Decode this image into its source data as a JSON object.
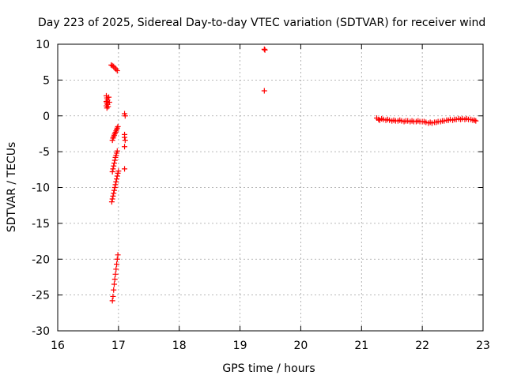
{
  "chart_data": {
    "type": "scatter",
    "title": "Day 223 of 2025, Sidereal Day-to-day VTEC variation (SDTVAR) for receiver wind",
    "xlabel": "GPS time / hours",
    "ylabel": "SDTVAR / TECUs",
    "xlim": [
      16,
      23
    ],
    "ylim": [
      -30,
      10
    ],
    "xticks": [
      16,
      17,
      18,
      19,
      20,
      21,
      22,
      23
    ],
    "yticks": [
      -30,
      -25,
      -20,
      -15,
      -10,
      -5,
      0,
      5,
      10
    ],
    "grid": true,
    "marker": "+",
    "color": "#ff0000",
    "series": [
      {
        "values": [
          {
            "x": 16.8,
            "y": 2.8
          },
          {
            "x": 16.81,
            "y": 2.5
          },
          {
            "x": 16.82,
            "y": 2.2
          },
          {
            "x": 16.8,
            "y": 2.0
          },
          {
            "x": 16.81,
            "y": 1.8
          },
          {
            "x": 16.82,
            "y": 1.6
          },
          {
            "x": 16.8,
            "y": 1.4
          },
          {
            "x": 16.83,
            "y": 1.3
          },
          {
            "x": 16.81,
            "y": 1.1
          },
          {
            "x": 16.84,
            "y": 2.6
          },
          {
            "x": 16.85,
            "y": 1.9
          },
          {
            "x": 16.88,
            "y": 7.1
          },
          {
            "x": 16.9,
            "y": 7.0
          },
          {
            "x": 16.92,
            "y": 6.9
          },
          {
            "x": 16.94,
            "y": 6.7
          },
          {
            "x": 16.96,
            "y": 6.5
          },
          {
            "x": 16.98,
            "y": 6.3
          },
          {
            "x": 16.9,
            "y": -3.4
          },
          {
            "x": 16.91,
            "y": -3.1
          },
          {
            "x": 16.92,
            "y": -2.9
          },
          {
            "x": 16.93,
            "y": -2.7
          },
          {
            "x": 16.94,
            "y": -2.5
          },
          {
            "x": 16.95,
            "y": -2.3
          },
          {
            "x": 16.96,
            "y": -2.1
          },
          {
            "x": 16.97,
            "y": -1.9
          },
          {
            "x": 16.98,
            "y": -1.7
          },
          {
            "x": 16.99,
            "y": -1.5
          },
          {
            "x": 16.9,
            "y": -7.8
          },
          {
            "x": 16.91,
            "y": -7.4
          },
          {
            "x": 16.92,
            "y": -7.0
          },
          {
            "x": 16.93,
            "y": -6.6
          },
          {
            "x": 16.94,
            "y": -6.2
          },
          {
            "x": 16.95,
            "y": -5.8
          },
          {
            "x": 16.96,
            "y": -5.5
          },
          {
            "x": 16.97,
            "y": -5.2
          },
          {
            "x": 16.98,
            "y": -4.9
          },
          {
            "x": 16.89,
            "y": -12.0
          },
          {
            "x": 16.9,
            "y": -11.6
          },
          {
            "x": 16.91,
            "y": -11.2
          },
          {
            "x": 16.92,
            "y": -10.8
          },
          {
            "x": 16.93,
            "y": -10.4
          },
          {
            "x": 16.94,
            "y": -10.0
          },
          {
            "x": 16.95,
            "y": -9.6
          },
          {
            "x": 16.96,
            "y": -9.2
          },
          {
            "x": 16.97,
            "y": -8.8
          },
          {
            "x": 16.98,
            "y": -8.4
          },
          {
            "x": 16.99,
            "y": -8.0
          },
          {
            "x": 17.0,
            "y": -7.7
          },
          {
            "x": 16.9,
            "y": -25.8
          },
          {
            "x": 16.91,
            "y": -25.2
          },
          {
            "x": 16.92,
            "y": -24.3
          },
          {
            "x": 16.93,
            "y": -23.5
          },
          {
            "x": 16.94,
            "y": -22.8
          },
          {
            "x": 16.95,
            "y": -22.1
          },
          {
            "x": 16.96,
            "y": -21.4
          },
          {
            "x": 16.97,
            "y": -20.7
          },
          {
            "x": 16.98,
            "y": -20.0
          },
          {
            "x": 16.99,
            "y": -19.4
          },
          {
            "x": 17.1,
            "y": 0.3
          },
          {
            "x": 17.11,
            "y": 0.0
          },
          {
            "x": 17.1,
            "y": -2.6
          },
          {
            "x": 17.1,
            "y": -3.0
          },
          {
            "x": 17.11,
            "y": -3.4
          },
          {
            "x": 17.1,
            "y": -4.3
          },
          {
            "x": 17.1,
            "y": -7.4
          },
          {
            "x": 19.4,
            "y": 9.3
          },
          {
            "x": 19.41,
            "y": 9.2
          },
          {
            "x": 19.4,
            "y": 3.5
          },
          {
            "x": 21.25,
            "y": -0.3
          },
          {
            "x": 21.28,
            "y": -0.5
          },
          {
            "x": 21.3,
            "y": -0.6
          },
          {
            "x": 21.33,
            "y": -0.4
          },
          {
            "x": 21.36,
            "y": -0.5
          },
          {
            "x": 21.4,
            "y": -0.6
          },
          {
            "x": 21.43,
            "y": -0.5
          },
          {
            "x": 21.46,
            "y": -0.6
          },
          {
            "x": 21.5,
            "y": -0.7
          },
          {
            "x": 21.53,
            "y": -0.6
          },
          {
            "x": 21.56,
            "y": -0.7
          },
          {
            "x": 21.6,
            "y": -0.7
          },
          {
            "x": 21.63,
            "y": -0.6
          },
          {
            "x": 21.66,
            "y": -0.7
          },
          {
            "x": 21.7,
            "y": -0.8
          },
          {
            "x": 21.73,
            "y": -0.7
          },
          {
            "x": 21.76,
            "y": -0.7
          },
          {
            "x": 21.8,
            "y": -0.8
          },
          {
            "x": 21.83,
            "y": -0.7
          },
          {
            "x": 21.86,
            "y": -0.8
          },
          {
            "x": 21.9,
            "y": -0.8
          },
          {
            "x": 21.93,
            "y": -0.7
          },
          {
            "x": 21.96,
            "y": -0.8
          },
          {
            "x": 22.0,
            "y": -0.8
          },
          {
            "x": 22.03,
            "y": -0.8
          },
          {
            "x": 22.06,
            "y": -0.9
          },
          {
            "x": 22.1,
            "y": -1.0
          },
          {
            "x": 22.13,
            "y": -0.9
          },
          {
            "x": 22.16,
            "y": -1.0
          },
          {
            "x": 22.2,
            "y": -0.9
          },
          {
            "x": 22.23,
            "y": -0.9
          },
          {
            "x": 22.26,
            "y": -0.8
          },
          {
            "x": 22.3,
            "y": -0.8
          },
          {
            "x": 22.33,
            "y": -0.7
          },
          {
            "x": 22.36,
            "y": -0.7
          },
          {
            "x": 22.4,
            "y": -0.6
          },
          {
            "x": 22.43,
            "y": -0.6
          },
          {
            "x": 22.46,
            "y": -0.5
          },
          {
            "x": 22.5,
            "y": -0.6
          },
          {
            "x": 22.53,
            "y": -0.5
          },
          {
            "x": 22.56,
            "y": -0.5
          },
          {
            "x": 22.6,
            "y": -0.4
          },
          {
            "x": 22.63,
            "y": -0.5
          },
          {
            "x": 22.66,
            "y": -0.4
          },
          {
            "x": 22.7,
            "y": -0.5
          },
          {
            "x": 22.73,
            "y": -0.4
          },
          {
            "x": 22.76,
            "y": -0.5
          },
          {
            "x": 22.8,
            "y": -0.5
          },
          {
            "x": 22.83,
            "y": -0.6
          },
          {
            "x": 22.86,
            "y": -0.6
          },
          {
            "x": 22.88,
            "y": -0.7
          }
        ]
      }
    ]
  }
}
